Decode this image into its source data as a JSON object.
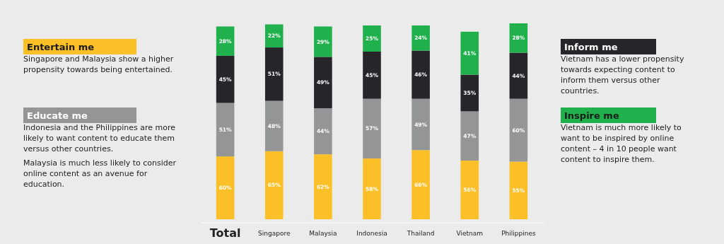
{
  "chart_data": {
    "type": "bar",
    "stacked": true,
    "legend": "left",
    "categories": [
      "Total",
      "Singapore",
      "Malaysia",
      "Indonesia",
      "Thailand",
      "Vietnam",
      "Philippines"
    ],
    "series": [
      {
        "name": "Entertain me",
        "color": "#fbbf28",
        "values": [
          60,
          65,
          62,
          58,
          66,
          56,
          55
        ],
        "value_labels": [
          "60%",
          "65%",
          "62%",
          "58%",
          "66%",
          "56%",
          "55%"
        ]
      },
      {
        "name": "Educate me",
        "color": "#949597",
        "values": [
          51,
          48,
          44,
          57,
          49,
          47,
          60
        ],
        "value_labels": [
          "51%",
          "48%",
          "44%",
          "57%",
          "49%",
          "47%",
          "60%"
        ]
      },
      {
        "name": "Inform me",
        "color": "#25252a",
        "values": [
          45,
          51,
          49,
          45,
          46,
          35,
          44
        ],
        "value_labels": [
          "45%",
          "51%",
          "49%",
          "45%",
          "46%",
          "35%",
          "44%"
        ]
      },
      {
        "name": "Inspire me",
        "color": "#20b14c",
        "values": [
          28,
          22,
          29,
          25,
          24,
          41,
          28
        ],
        "value_labels": [
          "28%",
          "22%",
          "29%",
          "25%",
          "24%",
          "41%",
          "28%"
        ]
      }
    ],
    "annotations": [
      "Singapore and Malaysia show a higher propensity towards being entertained.",
      "Indonesia and the Philippines are more likely to want content to educate them versus other countries.",
      "Malaysia is much less likely to consider online content as an avenue for education.",
      "Vietnam has a lower propensity towards expecting content to inform them versus other countries.",
      "Vietnam is much more likely to want to be inspired by online content – 4 in 10 people want content to inspire them."
    ]
  }
}
